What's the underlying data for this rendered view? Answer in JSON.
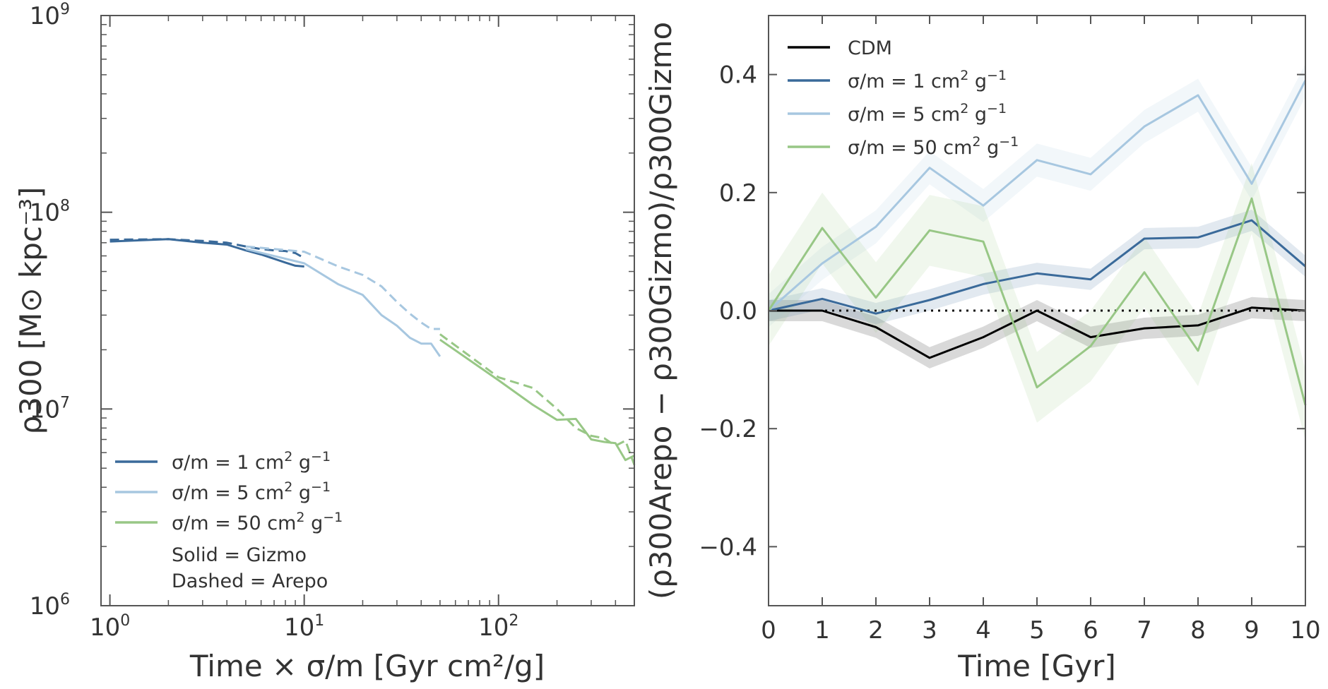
{
  "chart_data": [
    {
      "type": "line",
      "xscale": "log",
      "yscale": "log",
      "xlim": [
        0.9,
        500
      ],
      "ylim": [
        1000000,
        1000000000
      ],
      "xlabel": "Time × σ/m [Gyr cm²/g]",
      "ylabel": "ρ300 [M⊙ kpc⁻³]",
      "xticks": [
        {
          "value": 1,
          "base": "10",
          "exp": "0"
        },
        {
          "value": 10,
          "base": "10",
          "exp": "1"
        },
        {
          "value": 100,
          "base": "10",
          "exp": "2"
        }
      ],
      "yticks": [
        {
          "value": 1000000,
          "base": "10",
          "exp": "6"
        },
        {
          "value": 10000000,
          "base": "10",
          "exp": "7"
        },
        {
          "value": 100000000,
          "base": "10",
          "exp": "8"
        },
        {
          "value": 1000000000,
          "base": "10",
          "exp": "9"
        }
      ],
      "legend_position": "bottom-left",
      "legend": [
        {
          "prefix": "σ/m = 1  cm",
          "sup1": "2",
          "mid": " g",
          "sup2": "−1",
          "color": "#3a6a9a"
        },
        {
          "prefix": "σ/m = 5 cm",
          "sup1": "2",
          "mid": " g",
          "sup2": "−1",
          "color": "#a7c7e0"
        },
        {
          "prefix": "σ/m = 50  cm",
          "sup1": "2",
          "mid": " g",
          "sup2": "−1",
          "color": "#98c786"
        }
      ],
      "legend_notes": [
        "Solid = Gizmo",
        "Dashed = Arepo"
      ],
      "series": [
        {
          "name": "σ/m = 1 cm² g⁻¹ (Gizmo)",
          "color": "#3a6a9a",
          "dash": "solid",
          "x": [
            1,
            2,
            3,
            4,
            5,
            6,
            7,
            8,
            9,
            10
          ],
          "y": [
            71000000,
            73000000,
            70000000,
            68500000,
            64000000,
            61000000,
            58000000,
            55500000,
            53500000,
            53000000
          ]
        },
        {
          "name": "σ/m = 1 cm² g⁻¹ (Arepo)",
          "color": "#3a6a9a",
          "dash": "dashed",
          "x": [
            1,
            2,
            3,
            4,
            5,
            6,
            7,
            8,
            9,
            10
          ],
          "y": [
            72500000,
            73000000,
            71500000,
            70000000,
            67000000,
            65000000,
            64000000,
            63500000,
            62000000,
            58500000
          ]
        },
        {
          "name": "σ/m = 5 cm² g⁻¹ (Gizmo)",
          "color": "#a7c7e0",
          "dash": "solid",
          "x": [
            5,
            10,
            15,
            20,
            25,
            30,
            35,
            40,
            45,
            50
          ],
          "y": [
            65000000,
            55000000,
            43000000,
            38000000,
            30000000,
            26500000,
            23000000,
            21500000,
            21500000,
            18500000
          ]
        },
        {
          "name": "σ/m = 5 cm² g⁻¹ (Arepo)",
          "color": "#a7c7e0",
          "dash": "dashed",
          "x": [
            5,
            10,
            15,
            20,
            25,
            30,
            35,
            40,
            45,
            50
          ],
          "y": [
            67000000,
            63000000,
            53000000,
            48000000,
            42000000,
            35000000,
            30500000,
            27500000,
            25500000,
            25500000
          ]
        },
        {
          "name": "σ/m = 50 cm² g⁻¹ (Gizmo)",
          "color": "#98c786",
          "dash": "solid",
          "x": [
            50,
            100,
            150,
            200,
            250,
            300,
            350,
            400,
            450,
            500
          ],
          "y": [
            22500000,
            14000000,
            10500000,
            8800000,
            8900000,
            7000000,
            6800000,
            6700000,
            5500000,
            5800000
          ]
        },
        {
          "name": "σ/m = 50 cm² g⁻¹ (Arepo)",
          "color": "#98c786",
          "dash": "dashed",
          "x": [
            50,
            100,
            150,
            200,
            250,
            300,
            350,
            400,
            450,
            500
          ],
          "y": [
            24000000,
            14500000,
            12800000,
            10000000,
            8000000,
            7300000,
            7100000,
            6500000,
            6900000,
            5200000
          ]
        }
      ]
    },
    {
      "type": "line",
      "xlim": [
        0,
        10
      ],
      "ylim": [
        -0.5,
        0.5
      ],
      "xlabel": "Time [Gyr]",
      "ylabel": "(ρ300Arepo − ρ300Gizmo)/ρ300Gizmo",
      "xticks": [
        0,
        1,
        2,
        3,
        4,
        5,
        6,
        7,
        8,
        9,
        10
      ],
      "yticks": [
        -0.4,
        -0.2,
        0.0,
        0.2,
        0.4
      ],
      "ytick_labels": [
        "−0.4",
        "−0.2",
        "0.0",
        "0.2",
        "0.4"
      ],
      "reference_line": {
        "y": 0,
        "style": "dotted"
      },
      "legend_position": "top-left",
      "legend": [
        {
          "prefix": "CDM",
          "sup1": "",
          "mid": "",
          "sup2": "",
          "color": "#000000"
        },
        {
          "prefix": "σ/m = 1  cm",
          "sup1": "2",
          "mid": " g",
          "sup2": "−1",
          "color": "#3a6a9a"
        },
        {
          "prefix": "σ/m = 5  cm",
          "sup1": "2",
          "mid": " g",
          "sup2": "−1",
          "color": "#a7c7e0"
        },
        {
          "prefix": "σ/m = 50 cm",
          "sup1": "2",
          "mid": " g",
          "sup2": "−1",
          "color": "#98c786"
        }
      ],
      "series": [
        {
          "name": "CDM",
          "color": "#000000",
          "band": 0.018,
          "x": [
            0,
            1,
            2,
            3,
            4,
            5,
            6,
            7,
            8,
            9,
            10
          ],
          "y": [
            0.0,
            0.0,
            -0.028,
            -0.08,
            -0.045,
            0.0,
            -0.045,
            -0.03,
            -0.025,
            0.005,
            0.0
          ]
        },
        {
          "name": "σ/m = 1 cm² g⁻¹",
          "color": "#3a6a9a",
          "band": 0.018,
          "x": [
            0,
            1,
            2,
            3,
            4,
            5,
            6,
            7,
            8,
            9,
            10
          ],
          "y": [
            0.0,
            0.02,
            -0.005,
            0.018,
            0.045,
            0.063,
            0.053,
            0.122,
            0.124,
            0.153,
            0.075
          ]
        },
        {
          "name": "σ/m = 5 cm² g⁻¹",
          "color": "#a7c7e0",
          "band": 0.028,
          "x": [
            0,
            1,
            2,
            3,
            4,
            5,
            6,
            7,
            8,
            9,
            10
          ],
          "y": [
            0.0,
            0.08,
            0.142,
            0.242,
            0.178,
            0.255,
            0.231,
            0.312,
            0.365,
            0.215,
            0.39
          ]
        },
        {
          "name": "σ/m = 50 cm² g⁻¹",
          "color": "#98c786",
          "band": 0.06,
          "x": [
            0,
            1,
            2,
            3,
            4,
            5,
            6,
            7,
            8,
            9,
            10
          ],
          "y": [
            0.0,
            0.14,
            0.022,
            0.136,
            0.117,
            -0.13,
            -0.06,
            0.065,
            -0.068,
            0.19,
            -0.16
          ]
        }
      ]
    }
  ]
}
